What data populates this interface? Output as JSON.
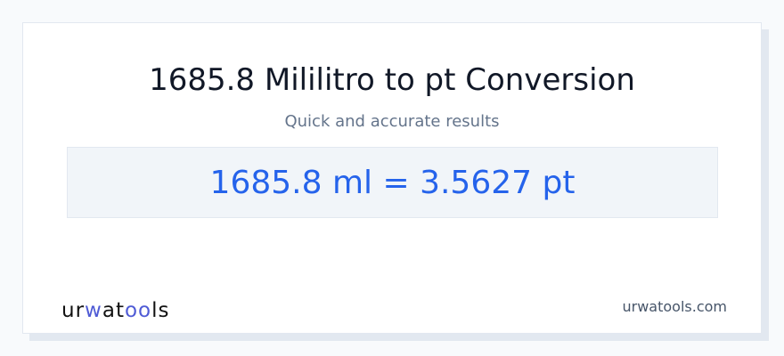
{
  "title": "1685.8 Mililitro to pt Conversion",
  "subtitle": "Quick and accurate results",
  "result": "1685.8 ml = 3.5627 pt",
  "logo": {
    "parts": [
      "ur",
      "w",
      "at",
      "oo",
      "ls"
    ]
  },
  "site": "urwatools.com",
  "colors": {
    "accent": "#2563eb",
    "logo_accent": "#4f5bd5"
  }
}
